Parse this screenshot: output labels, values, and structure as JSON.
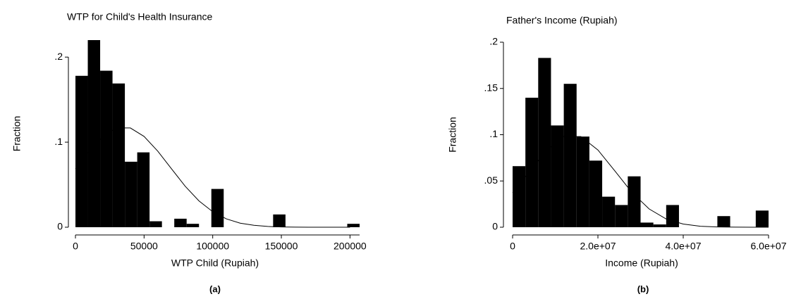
{
  "chart_data": [
    {
      "type": "histogram",
      "title": "WTP for Child's Health Insurance",
      "x_label": "WTP Child (Rupiah)",
      "y_label": "Fraction",
      "caption": "(a)",
      "bins": [
        0,
        9000,
        18000,
        27000,
        36000,
        45000,
        54000,
        63000,
        72000,
        81000,
        90000,
        99000,
        108000,
        117000,
        126000,
        135000,
        144000,
        153000,
        162000,
        171000,
        180000,
        189000,
        198000,
        207000
      ],
      "values": [
        0.178,
        0.22,
        0.184,
        0.169,
        0.077,
        0.088,
        0.007,
        0,
        0.01,
        0.004,
        0,
        0.045,
        0,
        0,
        0,
        0,
        0.015,
        0,
        0,
        0,
        0,
        0,
        0.004
      ],
      "color": "#000000",
      "fit_x": [
        0,
        10000,
        20000,
        30000,
        40000,
        50000,
        60000,
        70000,
        80000,
        90000,
        100000,
        110000,
        120000,
        130000,
        140000,
        150000,
        160000,
        170000,
        180000,
        190000,
        200000
      ],
      "fit_y": [
        0.0686,
        0.0894,
        0.1068,
        0.1167,
        0.1167,
        0.1068,
        0.0894,
        0.0686,
        0.0481,
        0.0309,
        0.0182,
        0.0098,
        0.0048,
        0.0022,
        0.0009,
        0.0003,
        0.0001,
        0,
        0,
        0,
        0
      ],
      "fit_color": "#000000",
      "xlim": [
        0,
        207000
      ],
      "xticks": [
        0,
        50000,
        100000,
        150000,
        200000
      ],
      "ylim": [
        0,
        0.22
      ],
      "yticks": [
        0,
        {
          "value": 0.1,
          "label": ".1"
        },
        {
          "value": 0.2,
          "label": ".2"
        }
      ]
    },
    {
      "type": "histogram",
      "title": "Father's Income (Rupiah)",
      "x_label": "Income (Rupiah)",
      "y_label": "Fraction",
      "caption": "(b)",
      "bins": [
        0,
        3000000,
        6000000,
        9000000,
        12000000,
        15000000,
        18000000,
        21000000,
        24000000,
        27000000,
        30000000,
        33000000,
        36000000,
        39000000,
        42000000,
        45000000,
        48000000,
        51000000,
        54000000,
        57000000,
        60000000
      ],
      "values": [
        0.066,
        0.14,
        0.183,
        0.11,
        0.155,
        0.098,
        0.072,
        0.033,
        0.024,
        0.055,
        0.005,
        0.003,
        0.024,
        0,
        0,
        0,
        0.012,
        0,
        0,
        0.018
      ],
      "color": "#000000",
      "fit_x": [
        0,
        4000000,
        8000000,
        12000000,
        16000000,
        20000000,
        24000000,
        28000000,
        32000000,
        36000000,
        40000000,
        44000000,
        48000000,
        52000000,
        56000000,
        60000000
      ],
      "fit_y": [
        0.0375,
        0.0607,
        0.0835,
        0.098,
        0.098,
        0.0835,
        0.0607,
        0.0375,
        0.0198,
        0.0089,
        0.0034,
        0.0011,
        0.0003,
        0.0001,
        0,
        0
      ],
      "fit_color": "#000000",
      "xlim": [
        0,
        60000000
      ],
      "xticks": [
        0,
        {
          "value": 20000000,
          "label": "2.0e+07"
        },
        {
          "value": 40000000,
          "label": "4.0e+07"
        },
        {
          "value": 60000000,
          "label": "6.0e+07"
        }
      ],
      "ylim": [
        0,
        0.2
      ],
      "yticks": [
        0,
        {
          "value": 0.05,
          "label": ".05"
        },
        {
          "value": 0.1,
          "label": ".1"
        },
        {
          "value": 0.15,
          "label": ".15"
        },
        {
          "value": 0.2,
          "label": ".2"
        }
      ]
    }
  ]
}
